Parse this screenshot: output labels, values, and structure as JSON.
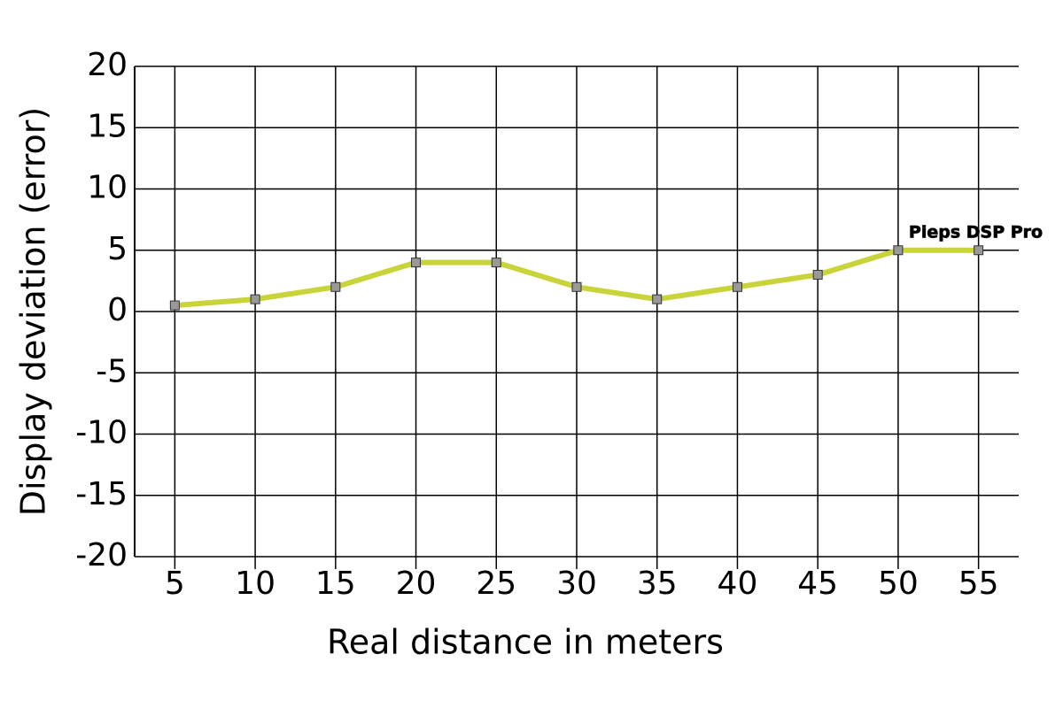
{
  "chart_data": {
    "type": "line",
    "x": [
      5,
      10,
      15,
      20,
      25,
      30,
      35,
      40,
      45,
      50,
      55
    ],
    "series": [
      {
        "name": "Pieps DSP Pro",
        "color": "#c9d33a",
        "values": [
          0.5,
          1,
          2,
          4,
          4,
          2,
          1,
          2,
          3,
          5,
          5
        ]
      }
    ],
    "xlabel": "Real distance in meters",
    "ylabel": "Display deviation (error)",
    "xlim": [
      2.5,
      57.5
    ],
    "xticks": [
      5,
      10,
      15,
      20,
      25,
      30,
      35,
      40,
      45,
      50,
      55
    ],
    "ylim": [
      -20,
      20
    ],
    "yticks": [
      -20,
      -15,
      -10,
      -5,
      0,
      5,
      10,
      15,
      20
    ],
    "grid": true,
    "marker_color": "#999999"
  }
}
